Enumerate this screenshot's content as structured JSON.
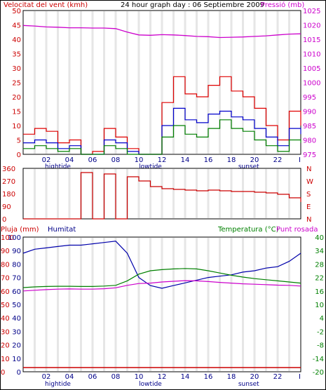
{
  "header": {
    "left_title": "Velocitat del vent (kmh)",
    "center_title": "24 hour graph day : 06 Septiembre 2009",
    "right_title": "Pressió (mb)"
  },
  "colors": {
    "wind_gust": "#e00000",
    "wind_avg": "#0000cc",
    "wind_green": "#008000",
    "pressure": "#cc00cc",
    "direction": "#cc0000",
    "rain": "#cc0000",
    "humidity": "#0000aa",
    "temperature": "#008000",
    "dewpoint": "#cc00cc",
    "grid": "#e6e6e6",
    "axis_left": "#cc0000",
    "axis_right_pressure": "#cc00cc",
    "axis_right_temp": "#008000",
    "axis_humidity": "#000088"
  },
  "chart_data": [
    {
      "type": "line",
      "panel": "wind",
      "title": "Velocitat del vent (kmh)",
      "right_title": "Pressió (mb)",
      "x_ticks": [
        "02",
        "04",
        "06",
        "08",
        "10",
        "12",
        "14",
        "16",
        "18",
        "20",
        "22"
      ],
      "x_marker_labels": [
        "hightide",
        "lowtide",
        "sunset"
      ],
      "y_ticks": [
        "0",
        "5",
        "10",
        "15",
        "20",
        "25",
        "30",
        "35",
        "40",
        "45",
        "50"
      ],
      "ylim": [
        0,
        50
      ],
      "y2_ticks": [
        "975",
        "980",
        "985",
        "990",
        "995",
        "1000",
        "1005",
        "1010",
        "1015",
        "1020",
        "1025"
      ],
      "y2lim": [
        975,
        1025
      ],
      "x_hours": [
        0,
        1,
        2,
        3,
        4,
        5,
        6,
        7,
        8,
        9,
        10,
        11,
        12,
        13,
        14,
        15,
        16,
        17,
        18,
        19,
        20,
        21,
        22,
        23,
        24
      ],
      "series": [
        {
          "color_key": "wind_gust",
          "values": [
            7,
            9,
            8,
            4,
            5,
            0,
            1,
            9,
            6,
            2,
            0,
            0,
            18,
            27,
            21,
            20,
            24,
            27,
            22,
            20,
            16,
            10,
            5,
            15,
            10
          ]
        },
        {
          "color_key": "wind_avg",
          "values": [
            4,
            5,
            4,
            2,
            3,
            0,
            0,
            5,
            4,
            1,
            0,
            0,
            10,
            16,
            12,
            11,
            14,
            15,
            13,
            12,
            9,
            6,
            3,
            9,
            7
          ]
        },
        {
          "color_key": "wind_green",
          "values": [
            2,
            3,
            2,
            1,
            2,
            0,
            0,
            3,
            2,
            0,
            0,
            0,
            6,
            10,
            7,
            6,
            9,
            12,
            9,
            8,
            5,
            3,
            1,
            5,
            4
          ]
        },
        {
          "color_key": "pressure",
          "axis": "right",
          "values": [
            1019.8,
            1019.6,
            1019.3,
            1019.2,
            1019.0,
            1019.0,
            1018.9,
            1018.9,
            1018.7,
            1017.5,
            1016.5,
            1016.4,
            1016.6,
            1016.5,
            1016.3,
            1016.0,
            1015.9,
            1015.6,
            1015.7,
            1015.8,
            1016.0,
            1016.2,
            1016.5,
            1016.8,
            1016.9
          ]
        }
      ]
    },
    {
      "type": "line",
      "panel": "direction",
      "y_ticks": [
        "0",
        "90",
        "180",
        "270",
        "360"
      ],
      "ylim": [
        0,
        360
      ],
      "y2_ticks": [
        "N",
        "E",
        "S",
        "W",
        "N"
      ],
      "x_hours": [
        0,
        1,
        2,
        3,
        4,
        5,
        6,
        7,
        8,
        9,
        10,
        11,
        12,
        13,
        14,
        15,
        16,
        17,
        18,
        19,
        20,
        21,
        22,
        23,
        24
      ],
      "series": [
        {
          "color_key": "direction",
          "values": [
            0,
            0,
            0,
            0,
            0,
            330,
            0,
            320,
            0,
            300,
            270,
            230,
            215,
            210,
            205,
            200,
            205,
            200,
            195,
            195,
            190,
            185,
            175,
            150,
            120
          ]
        }
      ]
    },
    {
      "type": "line",
      "panel": "climate",
      "left_title": "Pluja (mm)",
      "humidity_title": "Humitat",
      "temperature_title": "Temperatura (°C)",
      "dewpoint_title": "Punt rosada",
      "x_ticks": [
        "02",
        "04",
        "06",
        "08",
        "10",
        "12",
        "14",
        "16",
        "18",
        "20",
        "22"
      ],
      "x_marker_labels": [
        "hightide",
        "lowtide",
        "sunset"
      ],
      "rain_ticks": [
        "0",
        "10",
        "20",
        "30",
        "40",
        "50",
        "60",
        "70",
        "80",
        "90",
        "100"
      ],
      "rain_lim": [
        0,
        100
      ],
      "humidity_ticks": [
        "0",
        "10",
        "20",
        "30",
        "40",
        "50",
        "60",
        "70",
        "80",
        "90",
        "100"
      ],
      "temp_ticks": [
        "-20",
        "-14",
        "-8",
        "-2",
        "4",
        "10",
        "16",
        "22",
        "28",
        "34",
        "40"
      ],
      "temp_lim": [
        -20,
        40
      ],
      "x_hours": [
        0,
        1,
        2,
        3,
        4,
        5,
        6,
        7,
        8,
        9,
        10,
        11,
        12,
        13,
        14,
        15,
        16,
        17,
        18,
        19,
        20,
        21,
        22,
        23,
        24
      ],
      "series": [
        {
          "color_key": "rain",
          "axis": "rain",
          "values": [
            0,
            0,
            0,
            0,
            0,
            0,
            0,
            0,
            0,
            0,
            0,
            0,
            0,
            0,
            0,
            0,
            0,
            0,
            0,
            0,
            0,
            0,
            0,
            0,
            0
          ]
        },
        {
          "color_key": "humidity",
          "axis": "humidity",
          "values": [
            88,
            91,
            92,
            93,
            94,
            94,
            95,
            96,
            97,
            88,
            70,
            64,
            62,
            64,
            66,
            68,
            70,
            71,
            72,
            74,
            75,
            77,
            78,
            82,
            88
          ]
        },
        {
          "color_key": "temperature",
          "axis": "temp",
          "values": [
            17.5,
            17.8,
            18.0,
            18.1,
            18.1,
            18.0,
            18.0,
            18.2,
            18.5,
            20.5,
            23.5,
            25.0,
            25.5,
            25.8,
            26.0,
            25.8,
            25.0,
            24.0,
            23.0,
            22.2,
            21.5,
            21.0,
            20.5,
            20.0,
            19.5
          ]
        },
        {
          "color_key": "dewpoint",
          "axis": "temp",
          "values": [
            16.0,
            16.3,
            16.6,
            16.8,
            16.9,
            16.8,
            16.8,
            17.0,
            17.4,
            18.5,
            19.3,
            19.5,
            20.0,
            20.3,
            20.6,
            20.5,
            20.2,
            19.8,
            19.5,
            19.2,
            19.0,
            18.8,
            18.6,
            18.5,
            18.2
          ]
        }
      ]
    }
  ]
}
